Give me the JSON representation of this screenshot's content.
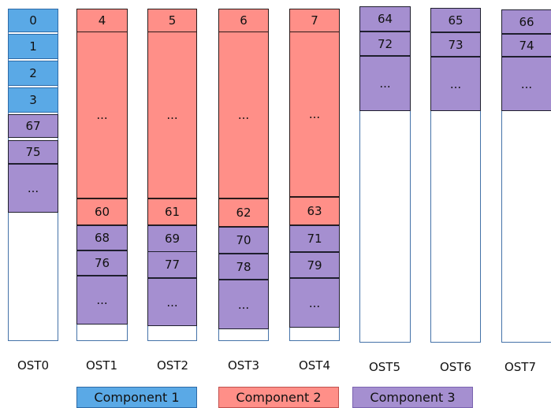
{
  "osts": [
    {
      "label": "OST0",
      "cells": [
        {
          "text": "0",
          "component": 1
        },
        {
          "text": "1",
          "component": 1
        },
        {
          "text": "2",
          "component": 1
        },
        {
          "text": "3",
          "component": 1
        },
        {
          "text": "67",
          "component": 3
        },
        {
          "text": "75",
          "component": 3
        },
        {
          "text": "...",
          "component": 3
        }
      ]
    },
    {
      "label": "OST1",
      "cells": [
        {
          "text": "4",
          "component": 2
        },
        {
          "text": "...",
          "component": 2
        },
        {
          "text": "60",
          "component": 2
        },
        {
          "text": "68",
          "component": 3
        },
        {
          "text": "76",
          "component": 3
        },
        {
          "text": "...",
          "component": 3
        }
      ]
    },
    {
      "label": "OST2",
      "cells": [
        {
          "text": "5",
          "component": 2
        },
        {
          "text": "...",
          "component": 2
        },
        {
          "text": "61",
          "component": 2
        },
        {
          "text": "69",
          "component": 3
        },
        {
          "text": "77",
          "component": 3
        },
        {
          "text": "...",
          "component": 3
        }
      ]
    },
    {
      "label": "OST3",
      "cells": [
        {
          "text": "6",
          "component": 2
        },
        {
          "text": "...",
          "component": 2
        },
        {
          "text": "62",
          "component": 2
        },
        {
          "text": "70",
          "component": 3
        },
        {
          "text": "78",
          "component": 3
        },
        {
          "text": "...",
          "component": 3
        }
      ]
    },
    {
      "label": "OST4",
      "cells": [
        {
          "text": "7",
          "component": 2
        },
        {
          "text": "...",
          "component": 2
        },
        {
          "text": "63",
          "component": 2
        },
        {
          "text": "71",
          "component": 3
        },
        {
          "text": "79",
          "component": 3
        },
        {
          "text": "...",
          "component": 3
        }
      ]
    },
    {
      "label": "OST5",
      "cells": [
        {
          "text": "64",
          "component": 3
        },
        {
          "text": "72",
          "component": 3
        },
        {
          "text": "...",
          "component": 3
        }
      ]
    },
    {
      "label": "OST6",
      "cells": [
        {
          "text": "65",
          "component": 3
        },
        {
          "text": "73",
          "component": 3
        },
        {
          "text": "...",
          "component": 3
        }
      ]
    },
    {
      "label": "OST7",
      "cells": [
        {
          "text": "66",
          "component": 3
        },
        {
          "text": "74",
          "component": 3
        },
        {
          "text": "...",
          "component": 3
        }
      ]
    }
  ],
  "legend": [
    {
      "label": "Component 1",
      "component": 1
    },
    {
      "label": "Component 2",
      "component": 2
    },
    {
      "label": "Component 3",
      "component": 3
    }
  ],
  "colors": {
    "component_1": "#5aa9e6",
    "component_2": "#ff8f88",
    "component_3": "#a58fd0",
    "column_border": "#4472a8"
  }
}
